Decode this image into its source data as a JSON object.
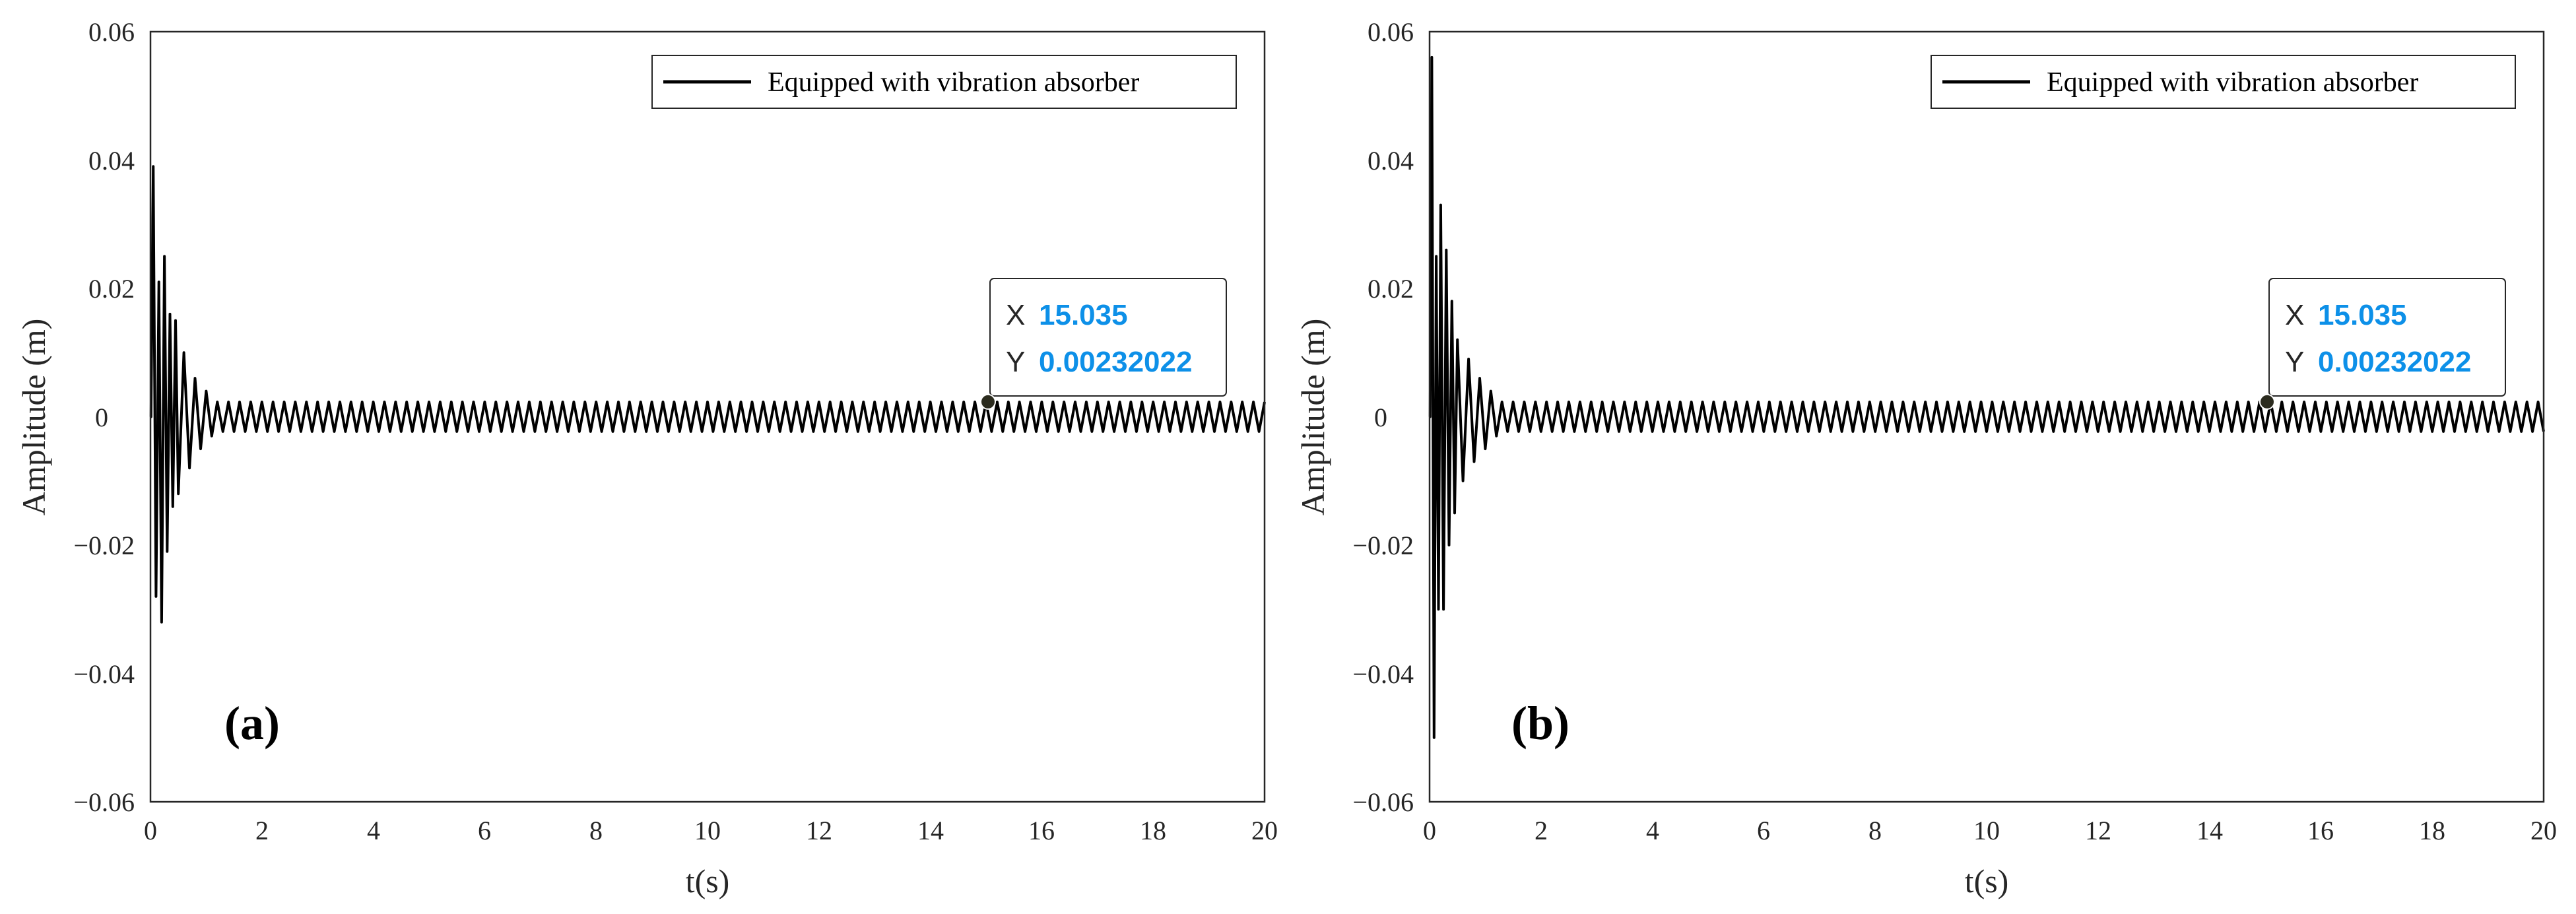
{
  "chart_data": [
    {
      "type": "line",
      "panel_label": "(a)",
      "xlabel": "t(s)",
      "ylabel": "Amplitude (m)",
      "xlim": [
        0,
        20
      ],
      "ylim": [
        -0.06,
        0.06
      ],
      "xticks": [
        "0",
        "2",
        "4",
        "6",
        "8",
        "10",
        "12",
        "14",
        "16",
        "18",
        "20"
      ],
      "yticks": [
        "0.06",
        "0.04",
        "0.02",
        "0",
        "−0.02",
        "−0.04",
        "−0.06"
      ],
      "legend": {
        "label": "Equipped with vibration absorber",
        "position": "top-right"
      },
      "series": [
        {
          "name": "Equipped with vibration absorber",
          "color": "#000000",
          "transient_peaks": {
            "x": [
              0.01,
              0.05,
              0.1,
              0.15,
              0.2,
              0.25,
              0.3,
              0.35,
              0.4,
              0.45,
              0.5,
              0.6,
              0.7,
              0.8,
              0.9,
              1.0,
              1.1
            ],
            "y": [
              0.0,
              0.039,
              -0.028,
              0.021,
              -0.032,
              0.025,
              -0.021,
              0.016,
              -0.014,
              0.015,
              -0.012,
              0.01,
              -0.008,
              0.006,
              -0.005,
              0.004,
              -0.003
            ]
          },
          "steady_state": {
            "amplitude": 0.0023,
            "period": 0.2,
            "start": 1.2,
            "end": 20
          }
        }
      ],
      "datatip": {
        "x_key": "X",
        "x_value": "15.035",
        "y_key": "Y",
        "y_value": "0.00232022",
        "x": 15.035,
        "y": 0.00232022,
        "value_color": "#0d90e8"
      }
    },
    {
      "type": "line",
      "panel_label": "(b)",
      "xlabel": "t(s)",
      "ylabel": "Amplitude (m)",
      "xlim": [
        0,
        20
      ],
      "ylim": [
        -0.06,
        0.06
      ],
      "xticks": [
        "0",
        "2",
        "4",
        "6",
        "8",
        "10",
        "12",
        "14",
        "16",
        "18",
        "20"
      ],
      "yticks": [
        "0.06",
        "0.04",
        "0.02",
        "0",
        "−0.02",
        "−0.04",
        "−0.06"
      ],
      "legend": {
        "label": "Equipped with vibration absorber",
        "position": "top-right"
      },
      "series": [
        {
          "name": "Equipped with vibration absorber",
          "color": "#000000",
          "transient_peaks": {
            "x": [
              0.01,
              0.04,
              0.08,
              0.12,
              0.16,
              0.2,
              0.25,
              0.3,
              0.35,
              0.4,
              0.45,
              0.5,
              0.6,
              0.7,
              0.8,
              0.9,
              1.0,
              1.1,
              1.2
            ],
            "y": [
              0.0,
              0.056,
              -0.05,
              0.025,
              -0.03,
              0.033,
              -0.03,
              0.026,
              -0.02,
              0.018,
              -0.015,
              0.012,
              -0.01,
              0.009,
              -0.007,
              0.006,
              -0.005,
              0.004,
              -0.003
            ]
          },
          "steady_state": {
            "amplitude": 0.0023,
            "period": 0.2,
            "start": 1.3,
            "end": 20
          }
        }
      ],
      "datatip": {
        "x_key": "X",
        "x_value": "15.035",
        "y_key": "Y",
        "y_value": "0.00232022",
        "x": 15.035,
        "y": 0.00232022,
        "value_color": "#0d90e8"
      }
    }
  ]
}
